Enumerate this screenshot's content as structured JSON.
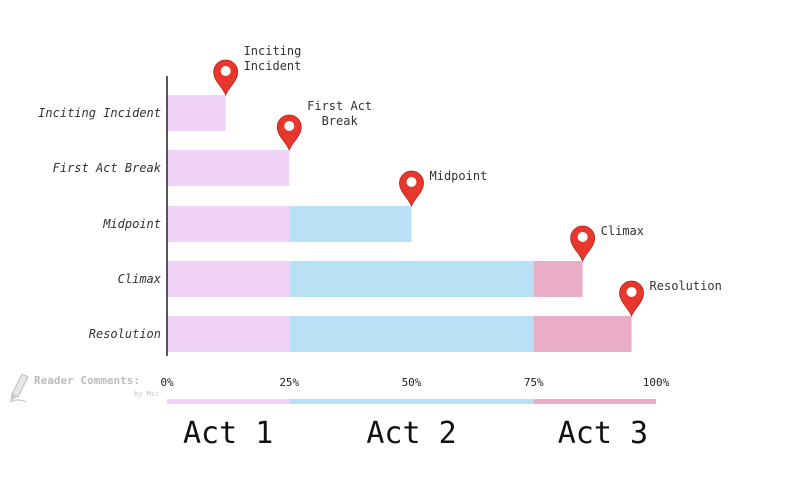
{
  "chart_data": {
    "type": "bar",
    "orientation": "horizontal",
    "stacked": true,
    "categories": [
      "Inciting Incident",
      "First Act Break",
      "Midpoint",
      "Climax",
      "Resolution"
    ],
    "xlim": [
      0,
      100
    ],
    "x_ticks": [
      0,
      25,
      50,
      75,
      100
    ],
    "x_tick_labels": [
      "0%",
      "25%",
      "50%",
      "75%",
      "100%"
    ],
    "grid": false,
    "series": [
      {
        "name": "Act 1",
        "color": "#f0d2f8",
        "values": [
          12,
          25,
          25,
          25,
          25
        ]
      },
      {
        "name": "Act 2",
        "color": "#b8e1f6",
        "values": [
          0,
          0,
          25,
          50,
          50
        ]
      },
      {
        "name": "Act 3",
        "color": "#e9adc8",
        "values": [
          0,
          0,
          0,
          10,
          20
        ]
      }
    ],
    "markers": [
      {
        "category": "Inciting Incident",
        "x": 12,
        "label": [
          "Inciting",
          "Incident"
        ]
      },
      {
        "category": "First Act Break",
        "x": 25,
        "label": [
          "First Act",
          "Break"
        ]
      },
      {
        "category": "Midpoint",
        "x": 50,
        "label": [
          "Midpoint"
        ]
      },
      {
        "category": "Climax",
        "x": 85,
        "label": [
          "Climax"
        ]
      },
      {
        "category": "Resolution",
        "x": 95,
        "label": [
          "Resolution"
        ]
      }
    ],
    "acts": [
      {
        "label": "Act 1",
        "from": 0,
        "to": 25,
        "color": "#f0d2f8"
      },
      {
        "label": "Act 2",
        "from": 25,
        "to": 75,
        "color": "#b8e1f6"
      },
      {
        "label": "Act 3",
        "from": 75,
        "to": 100,
        "color": "#e9adc8"
      }
    ],
    "marker_color": "#e8372c"
  },
  "watermark": {
    "line1": "Reader Comments:",
    "line2": "by Mic"
  }
}
